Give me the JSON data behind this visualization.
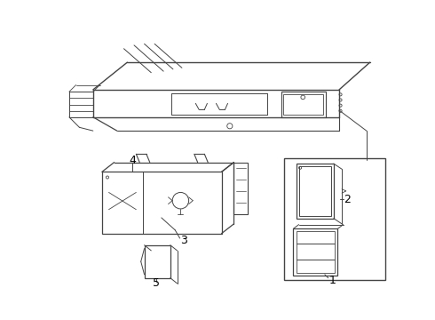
{
  "bg_color": "#ffffff",
  "line_color": "#444444",
  "label_color": "#000000",
  "label_fontsize": 8,
  "fig_width": 4.9,
  "fig_height": 3.6,
  "dpi": 100
}
